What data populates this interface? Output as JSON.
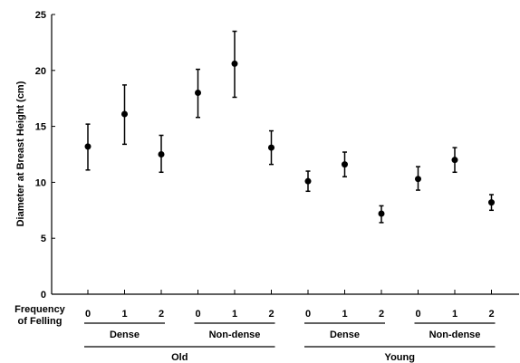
{
  "chart_data": {
    "type": "scatter",
    "ylabel": "Diameter at Breast Height (cm)",
    "ylim": [
      0,
      25
    ],
    "yticks": [
      0,
      5,
      10,
      15,
      20,
      25
    ],
    "grid": false,
    "x_row_label_line1": "Frequency",
    "x_row_label_line2": "of Felling",
    "categories": [
      "0",
      "1",
      "2",
      "0",
      "1",
      "2",
      "0",
      "1",
      "2",
      "0",
      "1",
      "2"
    ],
    "density_groups": [
      "Dense",
      "Non-dense",
      "Dense",
      "Non-dense"
    ],
    "age_groups": [
      "Old",
      "Young"
    ],
    "values": [
      13.2,
      16.1,
      12.5,
      18.0,
      20.6,
      13.1,
      10.1,
      11.6,
      7.2,
      10.3,
      12.0,
      8.2
    ],
    "error_upper": [
      15.2,
      18.7,
      14.2,
      20.1,
      23.5,
      14.6,
      11.0,
      12.7,
      7.9,
      11.4,
      13.1,
      8.9
    ],
    "error_lower": [
      11.1,
      13.4,
      10.9,
      15.8,
      17.6,
      11.6,
      9.2,
      10.5,
      6.4,
      9.3,
      10.9,
      7.5
    ],
    "marker_color": "#000000"
  }
}
